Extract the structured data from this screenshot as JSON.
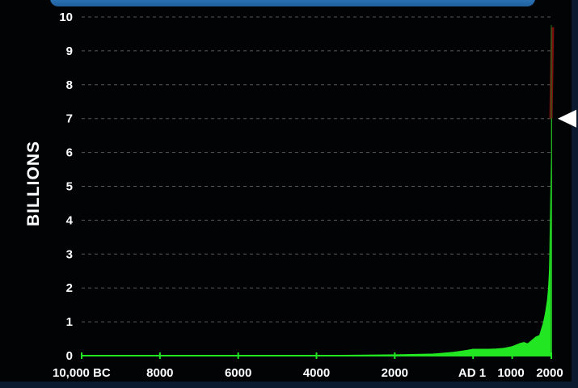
{
  "chart_data": {
    "type": "area",
    "title": "",
    "xlabel": "",
    "ylabel": "BILLIONS",
    "ylim": [
      0,
      10
    ],
    "xlim": [
      -10000,
      2000
    ],
    "grid": true,
    "y_ticks": [
      "0",
      "1",
      "2",
      "3",
      "4",
      "5",
      "6",
      "7",
      "8",
      "9",
      "10"
    ],
    "x_ticks": [
      {
        "value": -10000,
        "label": "10,000 BC"
      },
      {
        "value": -8000,
        "label": "8000"
      },
      {
        "value": -6000,
        "label": "6000"
      },
      {
        "value": -4000,
        "label": "4000"
      },
      {
        "value": -2000,
        "label": "2000"
      },
      {
        "value": 1,
        "label": "AD 1"
      },
      {
        "value": 1000,
        "label": "1000"
      },
      {
        "value": 2000,
        "label": "2000"
      }
    ],
    "series": [
      {
        "color": "#22e622",
        "points": [
          [
            -10000,
            0.004
          ],
          [
            -8000,
            0.005
          ],
          [
            -6000,
            0.006
          ],
          [
            -4000,
            0.007
          ],
          [
            -3000,
            0.014
          ],
          [
            -2000,
            0.027
          ],
          [
            -1000,
            0.05
          ],
          [
            -500,
            0.1
          ],
          [
            -200,
            0.15
          ],
          [
            1,
            0.19
          ],
          [
            200,
            0.19
          ],
          [
            400,
            0.19
          ],
          [
            600,
            0.2
          ],
          [
            800,
            0.22
          ],
          [
            1000,
            0.27
          ],
          [
            1200,
            0.36
          ],
          [
            1300,
            0.39
          ],
          [
            1400,
            0.35
          ],
          [
            1500,
            0.45
          ],
          [
            1600,
            0.55
          ],
          [
            1700,
            0.6
          ],
          [
            1800,
            0.98
          ],
          [
            1850,
            1.26
          ],
          [
            1900,
            1.65
          ],
          [
            1927,
            2.0
          ],
          [
            1950,
            2.5
          ],
          [
            1960,
            3.0
          ],
          [
            1974,
            4.0
          ],
          [
            1987,
            5.0
          ],
          [
            1999,
            6.0
          ],
          [
            2011,
            7.0
          ]
        ]
      },
      {
        "color": "#7a1010",
        "projection": true,
        "points": [
          [
            2011,
            7.0
          ],
          [
            2050,
            9.7
          ]
        ]
      }
    ],
    "marker": {
      "value": 7,
      "shape": "left-pointing-triangle",
      "color": "#ffffff"
    }
  }
}
